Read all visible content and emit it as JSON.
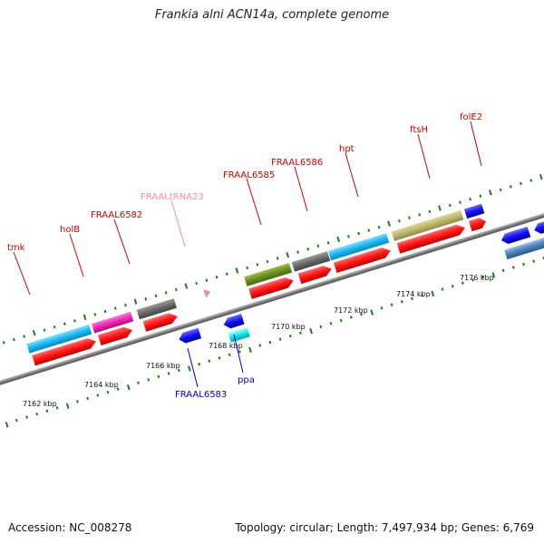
{
  "title": "Frankia alni ACN14a, complete genome",
  "footer": {
    "accession": "Accession: NC_008278",
    "topology": "Topology: circular; Length: 7,497,934 bp; Genes: 6,769"
  },
  "colors": {
    "backbone": "#8a8a8a",
    "tick": "#1f7a1f",
    "cds": "#ff2020",
    "rna_label": "#f08cb8",
    "reverse_label": "#0000cc",
    "forward_label": "#cc0000"
  },
  "scale_labels": [
    "7162 kbp",
    "7164 kbp",
    "7166 kbp",
    "7168 kbp",
    "7170 kbp",
    "7172 kbp",
    "7174 kbp",
    "7176 kbp"
  ],
  "forward_labels": [
    {
      "id": "tmk",
      "text": "tmk"
    },
    {
      "id": "holb",
      "text": "holB"
    },
    {
      "id": "fraal6582",
      "text": "FRAAL6582"
    },
    {
      "id": "fraal6585",
      "text": "FRAAL6585"
    },
    {
      "id": "fraal6586",
      "text": "FRAAL6586"
    },
    {
      "id": "hpt",
      "text": "hpt"
    },
    {
      "id": "ftsh",
      "text": "ftsH"
    },
    {
      "id": "fole2",
      "text": "folE2"
    }
  ],
  "rna_labels": [
    {
      "id": "fraaltrna23",
      "text": "FRAALtRNA23"
    }
  ],
  "reverse_labels": [
    {
      "id": "fraal6583",
      "text": "FRAAL6583"
    },
    {
      "id": "ppa",
      "text": "ppa"
    }
  ]
}
